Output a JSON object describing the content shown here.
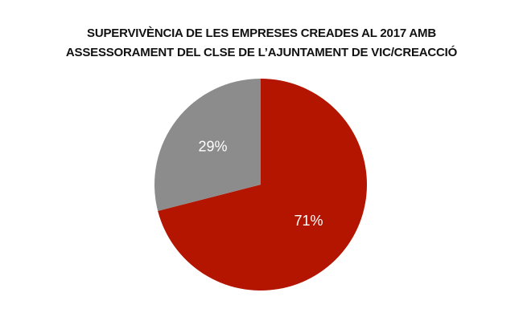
{
  "chart_data": {
    "type": "pie",
    "title_lines": [
      "SUPERVIVÈNCIA DE LES EMPRESES CREADES AL 2017 AMB",
      "ASSESSORAMENT DEL CLSE DE L’AJUNTAMENT DE VIC/CREACCIÓ"
    ],
    "slices": [
      {
        "value": 71,
        "label": "71%",
        "color": "#b31500"
      },
      {
        "value": 29,
        "label": "29%",
        "color": "#8c8c8c"
      }
    ]
  }
}
